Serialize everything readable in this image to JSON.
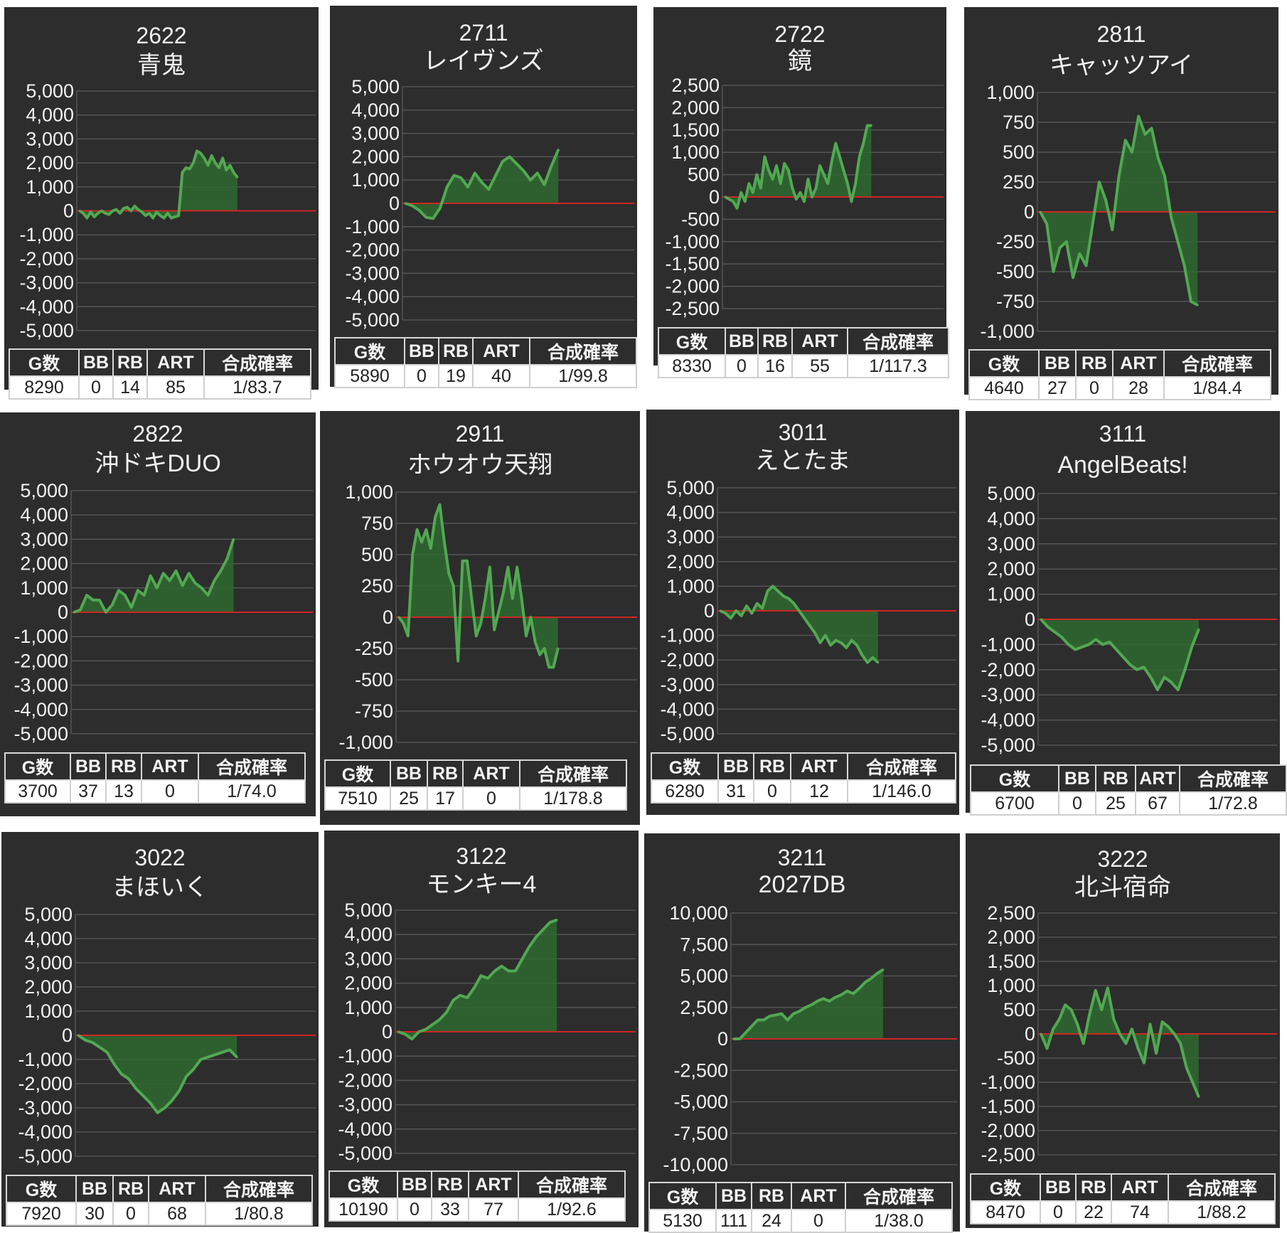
{
  "colors": {
    "panel_bg": "#2d2d2d",
    "grid": "#555555",
    "line": "#52a852",
    "fill": "#2f6a30",
    "zero_line": "#d02525"
  },
  "table_headers": [
    "G数",
    "BB",
    "RB",
    "ART",
    "合成確率"
  ],
  "machines": [
    {
      "number": "2622",
      "name": "青鬼",
      "chart_data": {
        "type": "area",
        "yticks": [
          "5,000",
          "4,000",
          "3,000",
          "2,000",
          "1,000",
          "0",
          "-1,000",
          "-2,000",
          "-3,000",
          "-4,000",
          "-5,000"
        ],
        "ylim": [
          -5000,
          5000
        ],
        "values": [
          0,
          -100,
          -300,
          -50,
          -250,
          -100,
          0,
          -100,
          -150,
          0,
          50,
          -100,
          100,
          150,
          0,
          200,
          50,
          -50,
          -200,
          -100,
          -300,
          -50,
          -200,
          -300,
          -100,
          -300,
          -250,
          -200,
          1600,
          1800,
          1750,
          2000,
          2500,
          2400,
          2200,
          1900,
          2300,
          2000,
          1800,
          2200,
          1700,
          1900,
          1600,
          1400
        ]
      },
      "stats": {
        "g": "8290",
        "bb": "0",
        "rb": "14",
        "art": "85",
        "prob": "1/83.7"
      }
    },
    {
      "number": "2711",
      "name": "レイヴンズ",
      "chart_data": {
        "type": "area",
        "yticks": [
          "5,000",
          "4,000",
          "3,000",
          "2,000",
          "1,000",
          "0",
          "-1,000",
          "-2,000",
          "-3,000",
          "-4,000",
          "-5,000"
        ],
        "ylim": [
          -5000,
          5000
        ],
        "values": [
          0,
          -100,
          -300,
          -600,
          -650,
          -200,
          700,
          1200,
          1100,
          700,
          1300,
          900,
          600,
          1200,
          1800,
          2000,
          1700,
          1400,
          1000,
          1300,
          800,
          1600,
          2300
        ]
      },
      "stats": {
        "g": "5890",
        "bb": "0",
        "rb": "19",
        "art": "40",
        "prob": "1/99.8"
      }
    },
    {
      "number": "2722",
      "name": "鏡",
      "chart_data": {
        "type": "area",
        "yticks": [
          "2,500",
          "2,000",
          "1,500",
          "1,000",
          "500",
          "0",
          "-500",
          "-1,000",
          "-1,500",
          "-2,000",
          "-2,500"
        ],
        "ylim": [
          -2500,
          2500
        ],
        "values": [
          0,
          -50,
          -100,
          -250,
          100,
          -100,
          300,
          100,
          500,
          200,
          900,
          600,
          400,
          700,
          300,
          750,
          600,
          200,
          -50,
          100,
          -100,
          400,
          0,
          200,
          700,
          500,
          300,
          800,
          1200,
          900,
          600,
          300,
          -100,
          300,
          900,
          1200,
          1600,
          1600
        ]
      },
      "stats": {
        "g": "8330",
        "bb": "0",
        "rb": "16",
        "art": "55",
        "prob": "1/117.3"
      }
    },
    {
      "number": "2811",
      "name": "キャッツアイ",
      "chart_data": {
        "type": "area",
        "yticks": [
          "1,000",
          "750",
          "500",
          "250",
          "0",
          "-250",
          "-500",
          "-750",
          "-1,000"
        ],
        "ylim": [
          -1000,
          1000
        ],
        "values": [
          0,
          -100,
          -500,
          -300,
          -250,
          -550,
          -350,
          -450,
          -100,
          250,
          100,
          -150,
          300,
          600,
          500,
          800,
          650,
          700,
          450,
          300,
          -50,
          -250,
          -450,
          -750,
          -780
        ]
      },
      "stats": {
        "g": "4640",
        "bb": "27",
        "rb": "0",
        "art": "28",
        "prob": "1/84.4"
      }
    },
    {
      "number": "2822",
      "name": "沖ドキDUO",
      "chart_data": {
        "type": "area",
        "yticks": [
          "5,000",
          "4,000",
          "3,000",
          "2,000",
          "1,000",
          "0",
          "-1,000",
          "-2,000",
          "-3,000",
          "-4,000",
          "-5,000"
        ],
        "ylim": [
          -5000,
          5000
        ],
        "values": [
          0,
          100,
          700,
          500,
          500,
          0,
          300,
          900,
          700,
          200,
          900,
          700,
          1500,
          1000,
          1600,
          1300,
          1700,
          1100,
          1600,
          1200,
          1000,
          700,
          1300,
          1700,
          2200,
          3000
        ]
      },
      "stats": {
        "g": "3700",
        "bb": "37",
        "rb": "13",
        "art": "0",
        "prob": "1/74.0"
      }
    },
    {
      "number": "2911",
      "name": "ホウオウ天翔",
      "chart_data": {
        "type": "area",
        "yticks": [
          "1,000",
          "750",
          "500",
          "250",
          "0",
          "-250",
          "-500",
          "-750",
          "-1,000"
        ],
        "ylim": [
          -1000,
          1000
        ],
        "values": [
          0,
          -50,
          -150,
          500,
          700,
          600,
          700,
          550,
          800,
          900,
          600,
          350,
          250,
          -350,
          450,
          450,
          150,
          -150,
          -50,
          150,
          400,
          -100,
          50,
          200,
          400,
          150,
          400,
          150,
          -150,
          0,
          -200,
          -300,
          -250,
          -400,
          -400,
          -250
        ]
      },
      "stats": {
        "g": "7510",
        "bb": "25",
        "rb": "17",
        "art": "0",
        "prob": "1/178.8"
      }
    },
    {
      "number": "3011",
      "name": "えとたま",
      "chart_data": {
        "type": "area",
        "yticks": [
          "5,000",
          "4,000",
          "3,000",
          "2,000",
          "1,000",
          "0",
          "-1,000",
          "-2,000",
          "-3,000",
          "-4,000",
          "-5,000"
        ],
        "ylim": [
          -5000,
          5000
        ],
        "values": [
          0,
          -100,
          -300,
          0,
          -200,
          200,
          -100,
          300,
          100,
          800,
          1000,
          800,
          600,
          500,
          300,
          0,
          -300,
          -600,
          -900,
          -1300,
          -1000,
          -1400,
          -1200,
          -1300,
          -1500,
          -1200,
          -1400,
          -1800,
          -2100,
          -1900,
          -2100
        ]
      },
      "stats": {
        "g": "6280",
        "bb": "31",
        "rb": "0",
        "art": "12",
        "prob": "1/146.0"
      }
    },
    {
      "number": "3111",
      "name": "AngelBeats!",
      "chart_data": {
        "type": "area",
        "yticks": [
          "5,000",
          "4,000",
          "3,000",
          "2,000",
          "1,000",
          "0",
          "-1,000",
          "-2,000",
          "-3,000",
          "-4,000",
          "-5,000"
        ],
        "ylim": [
          -5000,
          5000
        ],
        "values": [
          0,
          -300,
          -500,
          -700,
          -1000,
          -1200,
          -1100,
          -1000,
          -800,
          -1000,
          -900,
          -1200,
          -1500,
          -1800,
          -2000,
          -1900,
          -2300,
          -2800,
          -2300,
          -2500,
          -2800,
          -2000,
          -1100,
          -400
        ]
      },
      "stats": {
        "g": "6700",
        "bb": "0",
        "rb": "25",
        "art": "67",
        "prob": "1/72.8"
      }
    },
    {
      "number": "3022",
      "name": "まほいく",
      "chart_data": {
        "type": "area",
        "yticks": [
          "5,000",
          "4,000",
          "3,000",
          "2,000",
          "1,000",
          "0",
          "-1,000",
          "-2,000",
          "-3,000",
          "-4,000",
          "-5,000"
        ],
        "ylim": [
          -5000,
          5000
        ],
        "values": [
          0,
          -200,
          -300,
          -500,
          -700,
          -1200,
          -1600,
          -1800,
          -2200,
          -2500,
          -2800,
          -3200,
          -3000,
          -2700,
          -2300,
          -1700,
          -1400,
          -1000,
          -900,
          -800,
          -700,
          -600,
          -900
        ]
      },
      "stats": {
        "g": "7920",
        "bb": "30",
        "rb": "0",
        "art": "68",
        "prob": "1/80.8"
      }
    },
    {
      "number": "3122",
      "name": "モンキー4",
      "chart_data": {
        "type": "area",
        "yticks": [
          "5,000",
          "4,000",
          "3,000",
          "2,000",
          "1,000",
          "0",
          "-1,000",
          "-2,000",
          "-3,000",
          "-4,000",
          "-5,000"
        ],
        "ylim": [
          -5000,
          5000
        ],
        "values": [
          0,
          -100,
          -300,
          0,
          100,
          300,
          500,
          800,
          1300,
          1500,
          1400,
          1800,
          2300,
          2200,
          2500,
          2700,
          2500,
          2500,
          3000,
          3500,
          3900,
          4200,
          4500,
          4600
        ]
      },
      "stats": {
        "g": "10190",
        "bb": "0",
        "rb": "33",
        "art": "77",
        "prob": "1/92.6"
      }
    },
    {
      "number": "3211",
      "name": "2027DB",
      "chart_data": {
        "type": "area",
        "yticks": [
          "10,000",
          "7,500",
          "5,000",
          "2,500",
          "0",
          "-2,500",
          "-5,000",
          "-7,500",
          "-10,000"
        ],
        "ylim": [
          -10000,
          10000
        ],
        "values": [
          0,
          0,
          500,
          1000,
          1500,
          1500,
          1800,
          1900,
          2000,
          1500,
          2000,
          2200,
          2500,
          2700,
          3000,
          3200,
          3000,
          3300,
          3500,
          3800,
          3600,
          4000,
          4500,
          4800,
          5200,
          5500
        ]
      },
      "stats": {
        "g": "5130",
        "bb": "111",
        "rb": "24",
        "art": "0",
        "prob": "1/38.0"
      }
    },
    {
      "number": "3222",
      "name": "北斗宿命",
      "chart_data": {
        "type": "area",
        "yticks": [
          "2,500",
          "2,000",
          "1,500",
          "1,000",
          "500",
          "0",
          "-500",
          "-1,000",
          "-1,500",
          "-2,000",
          "-2,500"
        ],
        "ylim": [
          -2500,
          2500
        ],
        "values": [
          0,
          -300,
          100,
          300,
          600,
          500,
          200,
          -200,
          400,
          900,
          500,
          950,
          300,
          0,
          -200,
          100,
          -300,
          -600,
          200,
          -400,
          250,
          150,
          0,
          -200,
          -700,
          -1000,
          -1300
        ]
      },
      "stats": {
        "g": "8470",
        "bb": "0",
        "rb": "22",
        "art": "74",
        "prob": "1/88.2"
      }
    }
  ]
}
